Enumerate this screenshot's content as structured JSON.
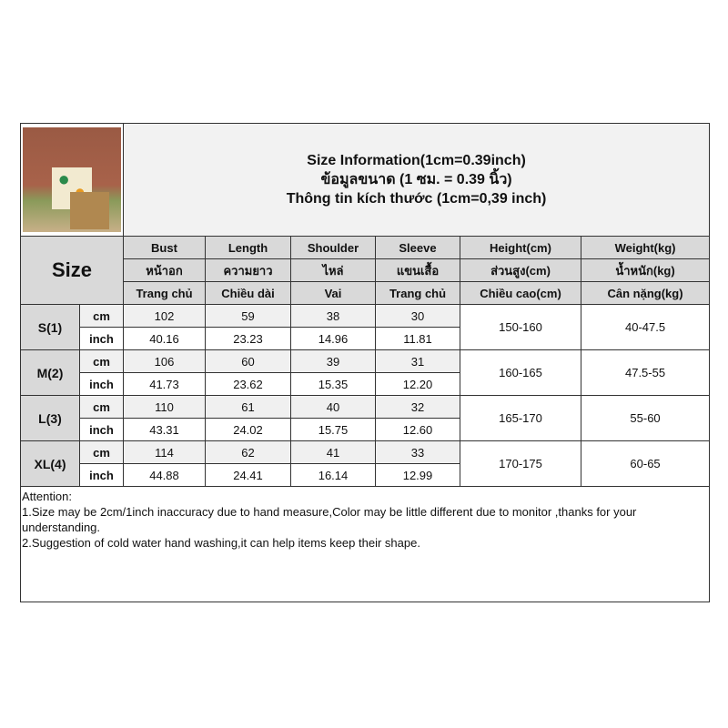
{
  "title": {
    "en": "Size Information(1cm=0.39inch)",
    "th": "ข้อมูลขนาด (1 ซม. = 0.39 นิ้ว)",
    "vi": "Thông tin kích thước (1cm=0,39 inch)"
  },
  "size_label": "Size",
  "columns": [
    {
      "en": "Bust",
      "th": "หน้าอก",
      "vi": "Trang chủ"
    },
    {
      "en": "Length",
      "th": "ความยาว",
      "vi": "Chiều dài"
    },
    {
      "en": "Shoulder",
      "th": "ไหล่",
      "vi": "Vai"
    },
    {
      "en": "Sleeve",
      "th": "แขนเสื้อ",
      "vi": "Trang chủ"
    },
    {
      "en": "Height(cm)",
      "th": "ส่วนสูง(cm)",
      "vi": "Chiều cao(cm)"
    },
    {
      "en": "Weight(kg)",
      "th": "น้ำหนัก(kg)",
      "vi": "Cân nặng(kg)"
    }
  ],
  "units": {
    "cm": "cm",
    "inch": "inch"
  },
  "sizes": [
    {
      "name": "S(1)",
      "cm": [
        "102",
        "59",
        "38",
        "30"
      ],
      "inch": [
        "40.16",
        "23.23",
        "14.96",
        "11.81"
      ],
      "height": "150-160",
      "weight": "40-47.5"
    },
    {
      "name": "M(2)",
      "cm": [
        "106",
        "60",
        "39",
        "31"
      ],
      "inch": [
        "41.73",
        "23.62",
        "15.35",
        "12.20"
      ],
      "height": "160-165",
      "weight": "47.5-55"
    },
    {
      "name": "L(3)",
      "cm": [
        "110",
        "61",
        "40",
        "32"
      ],
      "inch": [
        "43.31",
        "24.02",
        "15.75",
        "12.60"
      ],
      "height": "165-170",
      "weight": "55-60"
    },
    {
      "name": "XL(4)",
      "cm": [
        "114",
        "62",
        "41",
        "33"
      ],
      "inch": [
        "44.88",
        "24.41",
        "16.14",
        "12.99"
      ],
      "height": "170-175",
      "weight": "60-65"
    }
  ],
  "attention": {
    "heading": "Attention:",
    "line1": "1.Size may be 2cm/1inch inaccuracy due to hand measure,Color may be little different due to monitor ,thanks for your understanding.",
    "line2": "2.Suggestion of cold water hand washing,it can help items keep their shape."
  }
}
